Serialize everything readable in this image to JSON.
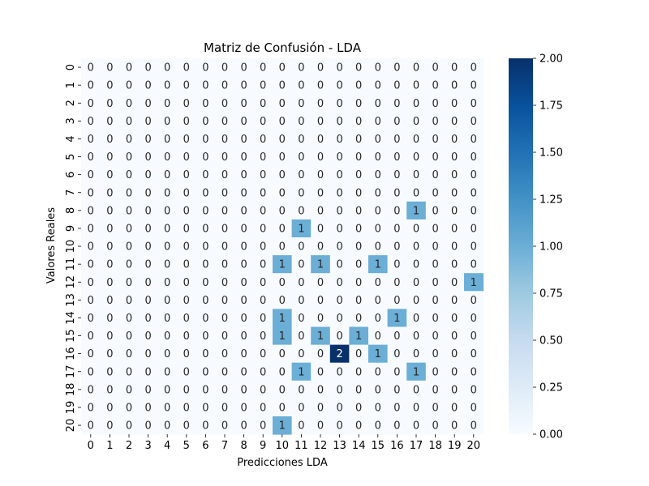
{
  "chart_data": {
    "type": "heatmap",
    "title": "Matriz de Confusión - LDA",
    "xlabel": "Predicciones LDA",
    "ylabel": "Valores Reales",
    "x_ticks": [
      "0",
      "1",
      "2",
      "3",
      "4",
      "5",
      "6",
      "7",
      "8",
      "9",
      "10",
      "11",
      "12",
      "13",
      "14",
      "15",
      "16",
      "17",
      "18",
      "19",
      "20"
    ],
    "y_ticks": [
      "0",
      "1",
      "2",
      "3",
      "4",
      "5",
      "6",
      "7",
      "8",
      "9",
      "10",
      "11",
      "12",
      "13",
      "14",
      "15",
      "16",
      "17",
      "18",
      "19",
      "20"
    ],
    "matrix": [
      [
        0,
        0,
        0,
        0,
        0,
        0,
        0,
        0,
        0,
        0,
        0,
        0,
        0,
        0,
        0,
        0,
        0,
        0,
        0,
        0,
        0
      ],
      [
        0,
        0,
        0,
        0,
        0,
        0,
        0,
        0,
        0,
        0,
        0,
        0,
        0,
        0,
        0,
        0,
        0,
        0,
        0,
        0,
        0
      ],
      [
        0,
        0,
        0,
        0,
        0,
        0,
        0,
        0,
        0,
        0,
        0,
        0,
        0,
        0,
        0,
        0,
        0,
        0,
        0,
        0,
        0
      ],
      [
        0,
        0,
        0,
        0,
        0,
        0,
        0,
        0,
        0,
        0,
        0,
        0,
        0,
        0,
        0,
        0,
        0,
        0,
        0,
        0,
        0
      ],
      [
        0,
        0,
        0,
        0,
        0,
        0,
        0,
        0,
        0,
        0,
        0,
        0,
        0,
        0,
        0,
        0,
        0,
        0,
        0,
        0,
        0
      ],
      [
        0,
        0,
        0,
        0,
        0,
        0,
        0,
        0,
        0,
        0,
        0,
        0,
        0,
        0,
        0,
        0,
        0,
        0,
        0,
        0,
        0
      ],
      [
        0,
        0,
        0,
        0,
        0,
        0,
        0,
        0,
        0,
        0,
        0,
        0,
        0,
        0,
        0,
        0,
        0,
        0,
        0,
        0,
        0
      ],
      [
        0,
        0,
        0,
        0,
        0,
        0,
        0,
        0,
        0,
        0,
        0,
        0,
        0,
        0,
        0,
        0,
        0,
        0,
        0,
        0,
        0
      ],
      [
        0,
        0,
        0,
        0,
        0,
        0,
        0,
        0,
        0,
        0,
        0,
        0,
        0,
        0,
        0,
        0,
        0,
        1,
        0,
        0,
        0
      ],
      [
        0,
        0,
        0,
        0,
        0,
        0,
        0,
        0,
        0,
        0,
        0,
        1,
        0,
        0,
        0,
        0,
        0,
        0,
        0,
        0,
        0
      ],
      [
        0,
        0,
        0,
        0,
        0,
        0,
        0,
        0,
        0,
        0,
        0,
        0,
        0,
        0,
        0,
        0,
        0,
        0,
        0,
        0,
        0
      ],
      [
        0,
        0,
        0,
        0,
        0,
        0,
        0,
        0,
        0,
        0,
        1,
        0,
        1,
        0,
        0,
        1,
        0,
        0,
        0,
        0,
        0
      ],
      [
        0,
        0,
        0,
        0,
        0,
        0,
        0,
        0,
        0,
        0,
        0,
        0,
        0,
        0,
        0,
        0,
        0,
        0,
        0,
        0,
        1
      ],
      [
        0,
        0,
        0,
        0,
        0,
        0,
        0,
        0,
        0,
        0,
        0,
        0,
        0,
        0,
        0,
        0,
        0,
        0,
        0,
        0,
        0
      ],
      [
        0,
        0,
        0,
        0,
        0,
        0,
        0,
        0,
        0,
        0,
        1,
        0,
        0,
        0,
        0,
        0,
        1,
        0,
        0,
        0,
        0
      ],
      [
        0,
        0,
        0,
        0,
        0,
        0,
        0,
        0,
        0,
        0,
        1,
        0,
        1,
        0,
        1,
        0,
        0,
        0,
        0,
        0,
        0
      ],
      [
        0,
        0,
        0,
        0,
        0,
        0,
        0,
        0,
        0,
        0,
        0,
        0,
        0,
        2,
        0,
        1,
        0,
        0,
        0,
        0,
        0
      ],
      [
        0,
        0,
        0,
        0,
        0,
        0,
        0,
        0,
        0,
        0,
        0,
        1,
        0,
        0,
        0,
        0,
        0,
        1,
        0,
        0,
        0
      ],
      [
        0,
        0,
        0,
        0,
        0,
        0,
        0,
        0,
        0,
        0,
        0,
        0,
        0,
        0,
        0,
        0,
        0,
        0,
        0,
        0,
        0
      ],
      [
        0,
        0,
        0,
        0,
        0,
        0,
        0,
        0,
        0,
        0,
        0,
        0,
        0,
        0,
        0,
        0,
        0,
        0,
        0,
        0,
        0
      ],
      [
        0,
        0,
        0,
        0,
        0,
        0,
        0,
        0,
        0,
        0,
        1,
        0,
        0,
        0,
        0,
        0,
        0,
        0,
        0,
        0,
        0
      ]
    ],
    "vmin": 0,
    "vmax": 2,
    "colormap": "Blues",
    "colorbar_ticks": [
      "0.00",
      "0.25",
      "0.50",
      "0.75",
      "1.00",
      "1.25",
      "1.50",
      "1.75",
      "2.00"
    ],
    "grid": false,
    "legend": "colorbar-right"
  }
}
